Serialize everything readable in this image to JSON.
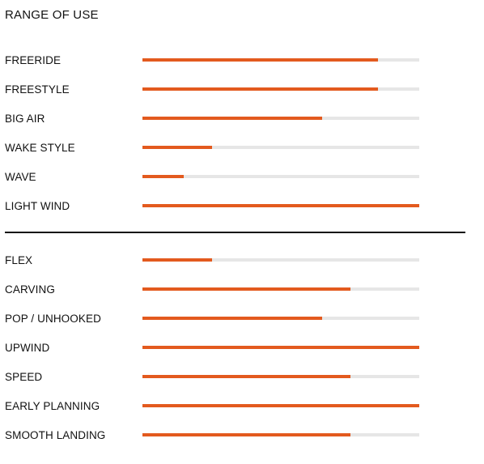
{
  "title": "RANGE OF USE",
  "colors": {
    "accent": "#e35a1e",
    "track": "#e6e6e6",
    "text": "#111111",
    "divider": "#111111"
  },
  "range_of_use": [
    {
      "label": "FREERIDE",
      "value": 0.85
    },
    {
      "label": "FREESTYLE",
      "value": 0.85
    },
    {
      "label": "BIG AIR",
      "value": 0.65
    },
    {
      "label": "WAKE STYLE",
      "value": 0.25
    },
    {
      "label": "WAVE",
      "value": 0.15
    },
    {
      "label": "LIGHT WIND",
      "value": 1.0
    }
  ],
  "characteristics": [
    {
      "label": "FLEX",
      "value": 0.25
    },
    {
      "label": "CARVING",
      "value": 0.75
    },
    {
      "label": "POP / UNHOOKED",
      "value": 0.65
    },
    {
      "label": "UPWIND",
      "value": 1.0
    },
    {
      "label": "SPEED",
      "value": 0.75
    },
    {
      "label": "EARLY PLANNING",
      "value": 1.0
    },
    {
      "label": "SMOOTH LANDING",
      "value": 0.75
    }
  ]
}
